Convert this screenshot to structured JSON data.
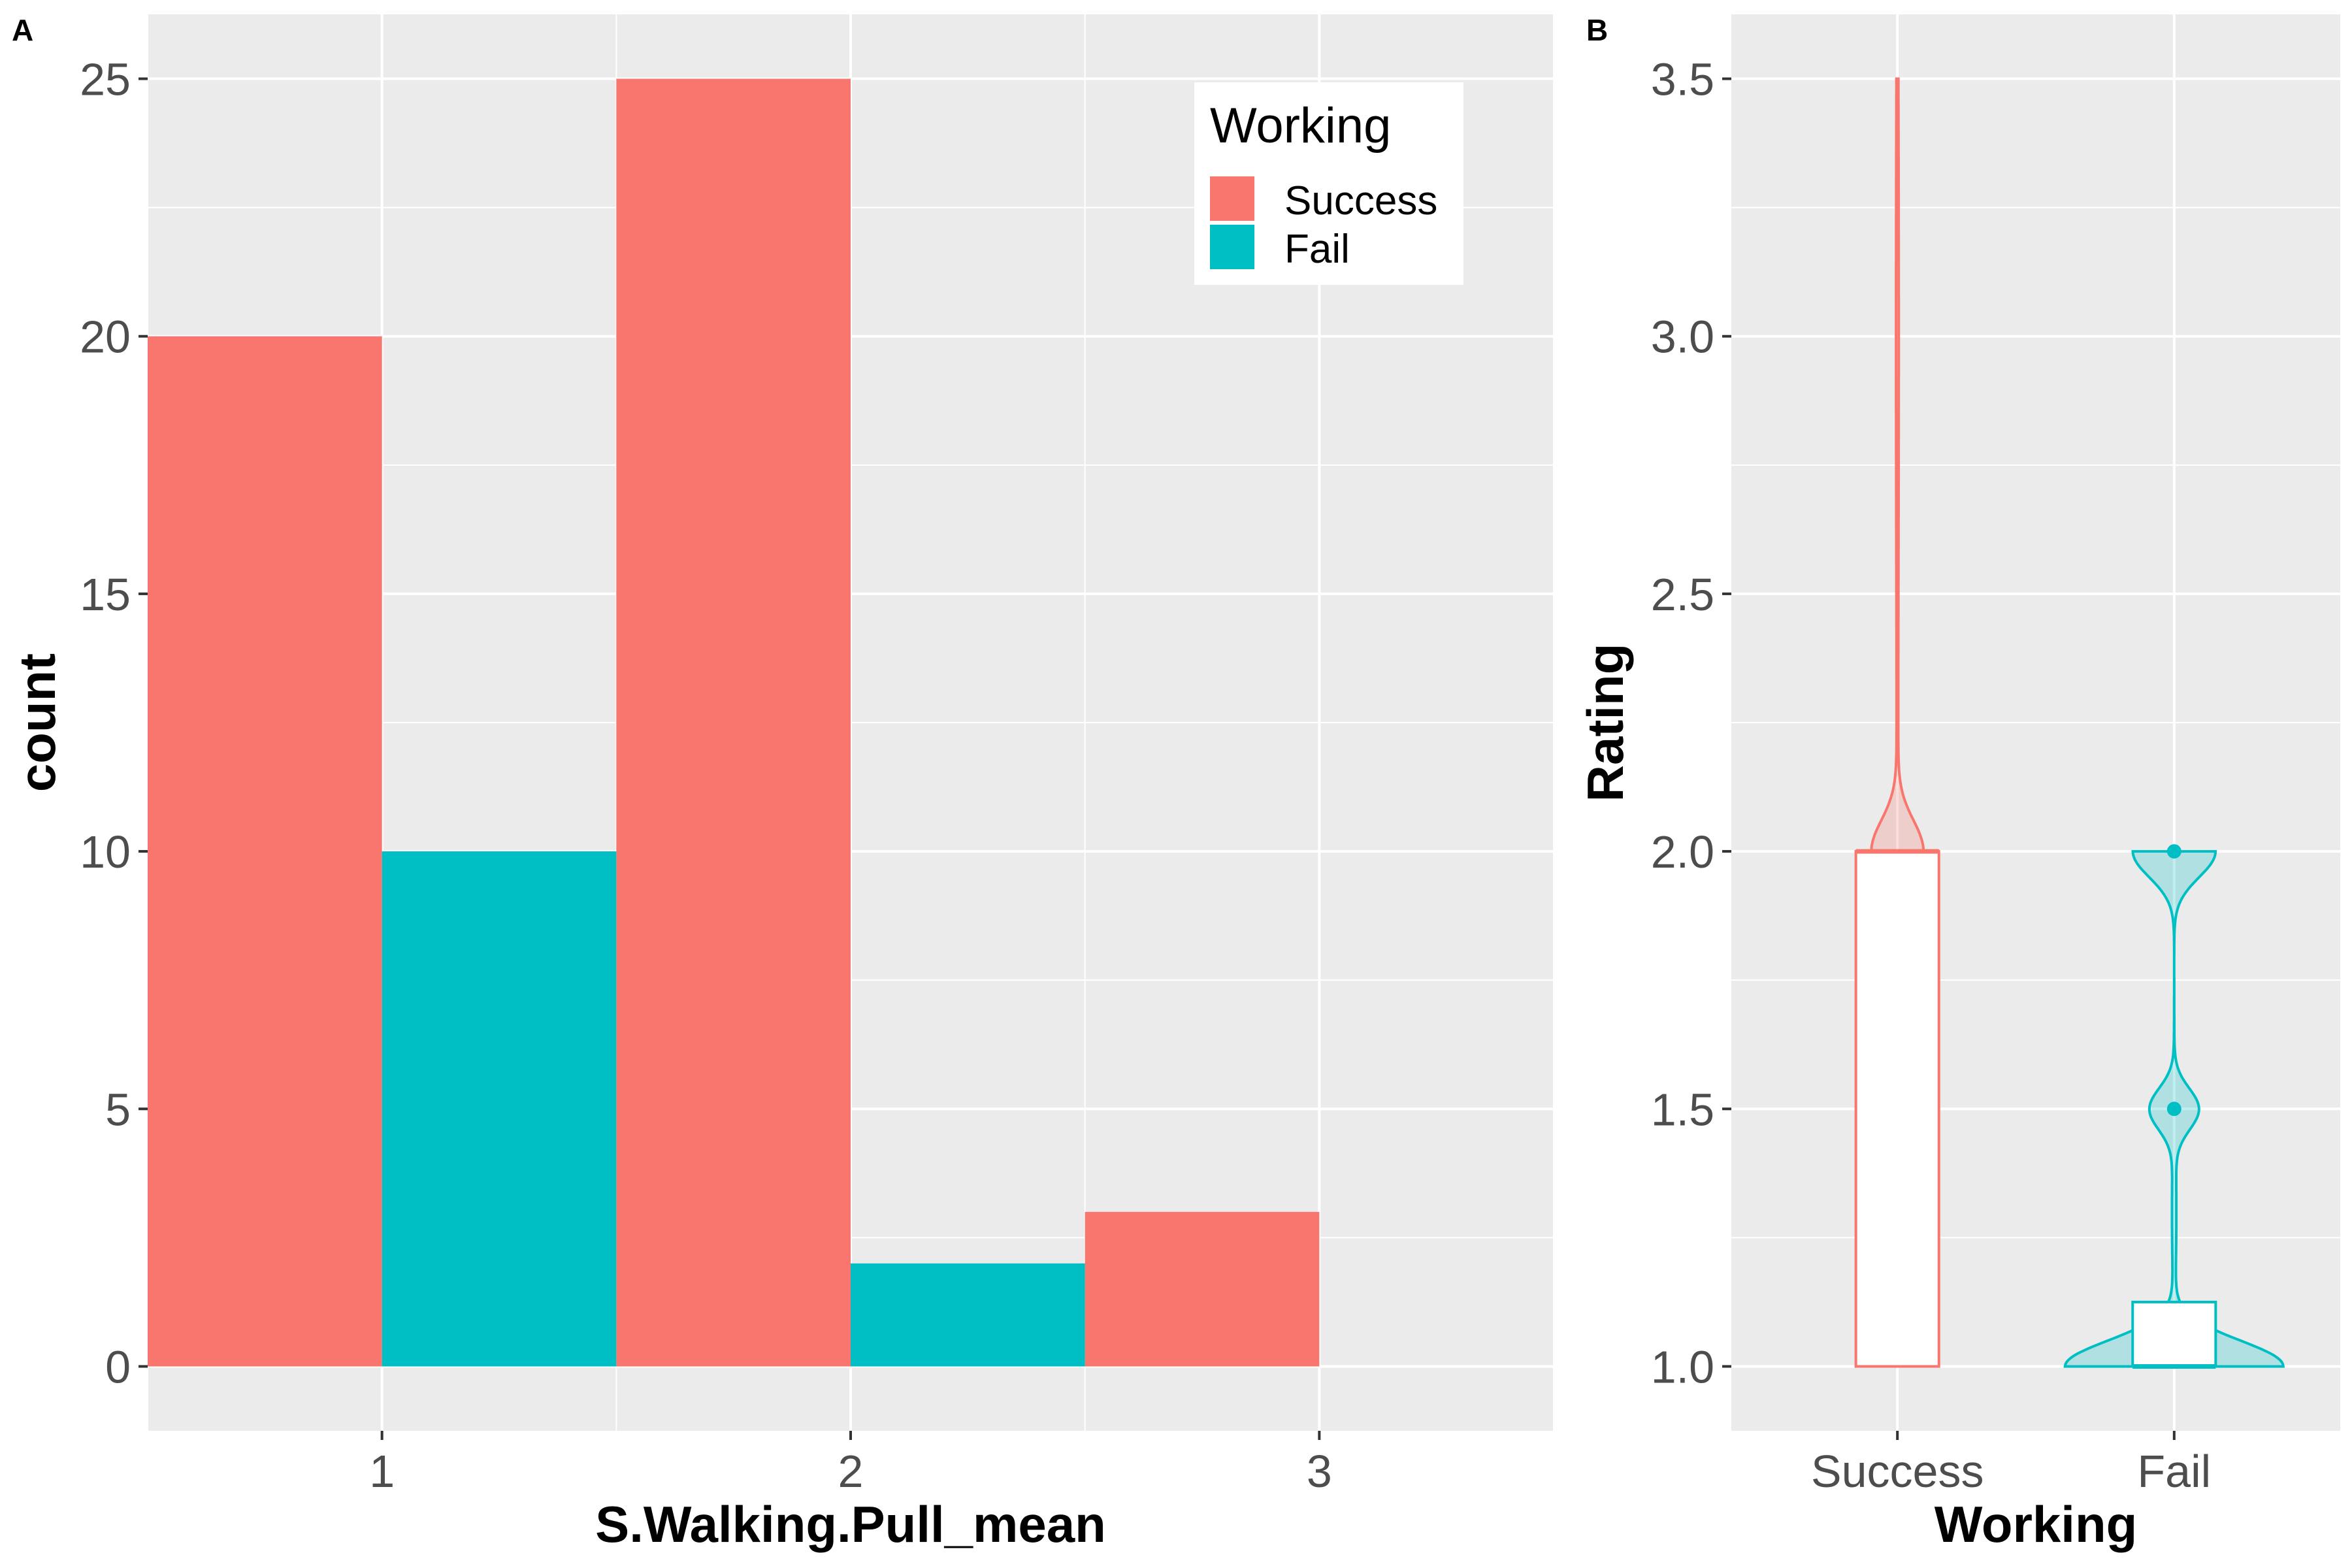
{
  "chart_data": [
    {
      "panel": "A",
      "type": "bar",
      "xlabel": "S.Walking.Pull_mean",
      "ylabel": "count",
      "categories": [
        "1",
        "2",
        "3"
      ],
      "ylim": [
        -1.25,
        26.25
      ],
      "xlim": [
        0.5,
        3.5
      ],
      "y_ticks": [
        "0",
        "5",
        "10",
        "15",
        "20",
        "25"
      ],
      "grid": true,
      "legend": {
        "title": "Working",
        "placement": "top-right",
        "items": [
          {
            "label": "Success",
            "color": "#f8766d"
          },
          {
            "label": "Fail",
            "color": "#00bfc4"
          }
        ]
      },
      "series": [
        {
          "name": "Success",
          "color": "#f8766d",
          "values": [
            20,
            25,
            3
          ]
        },
        {
          "name": "Fail",
          "color": "#00bfc4",
          "values": [
            10,
            2,
            0
          ]
        }
      ]
    },
    {
      "panel": "B",
      "type": "violin",
      "xlabel": "Working",
      "ylabel": "Rating",
      "categories": [
        "Success",
        "Fail"
      ],
      "ylim": [
        0.875,
        3.625
      ],
      "y_ticks": [
        "1.0",
        "1.5",
        "2.0",
        "2.5",
        "3.0",
        "3.5"
      ],
      "grid": true,
      "groups": [
        {
          "name": "Success",
          "color": "#f8766d",
          "box": {
            "min": 1.0,
            "q1": 1.0,
            "median": 2.0,
            "q3": 2.0,
            "max": 2.0
          },
          "outliers": [],
          "range": [
            1.0,
            3.5
          ]
        },
        {
          "name": "Fail",
          "color": "#00bfc4",
          "box": {
            "min": 1.0,
            "q1": 1.0,
            "median": 1.0,
            "q3": 1.125,
            "max": 1.125
          },
          "outliers": [
            1.5,
            2.0
          ],
          "range": [
            1.0,
            2.0
          ]
        }
      ]
    }
  ]
}
